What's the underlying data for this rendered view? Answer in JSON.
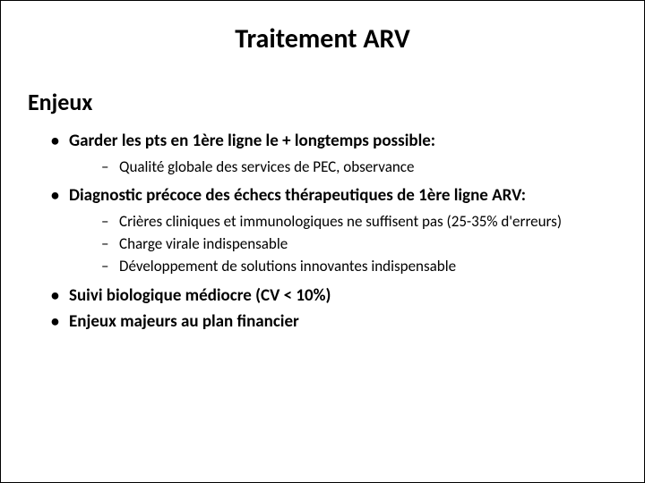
{
  "title": "Traitement ARV",
  "subtitle": "Enjeux",
  "items": [
    {
      "text": "Garder les pts en 1ère ligne le + longtemps possible:",
      "children": [
        {
          "text": "Qualité globale des services de PEC, observance"
        }
      ]
    },
    {
      "text": "Diagnostic précoce des échecs thérapeutiques de 1ère ligne ARV:",
      "children": [
        {
          "text": "Crières cliniques et immunologiques ne suffisent pas (25-35% d'erreurs)"
        },
        {
          "text": "Charge virale indispensable"
        },
        {
          "text": "Développement de solutions innovantes indispensable"
        }
      ]
    },
    {
      "text": "Suivi biologique médiocre (CV < 10%)",
      "children": []
    },
    {
      "text": "Enjeux majeurs au plan financier",
      "children": []
    }
  ]
}
